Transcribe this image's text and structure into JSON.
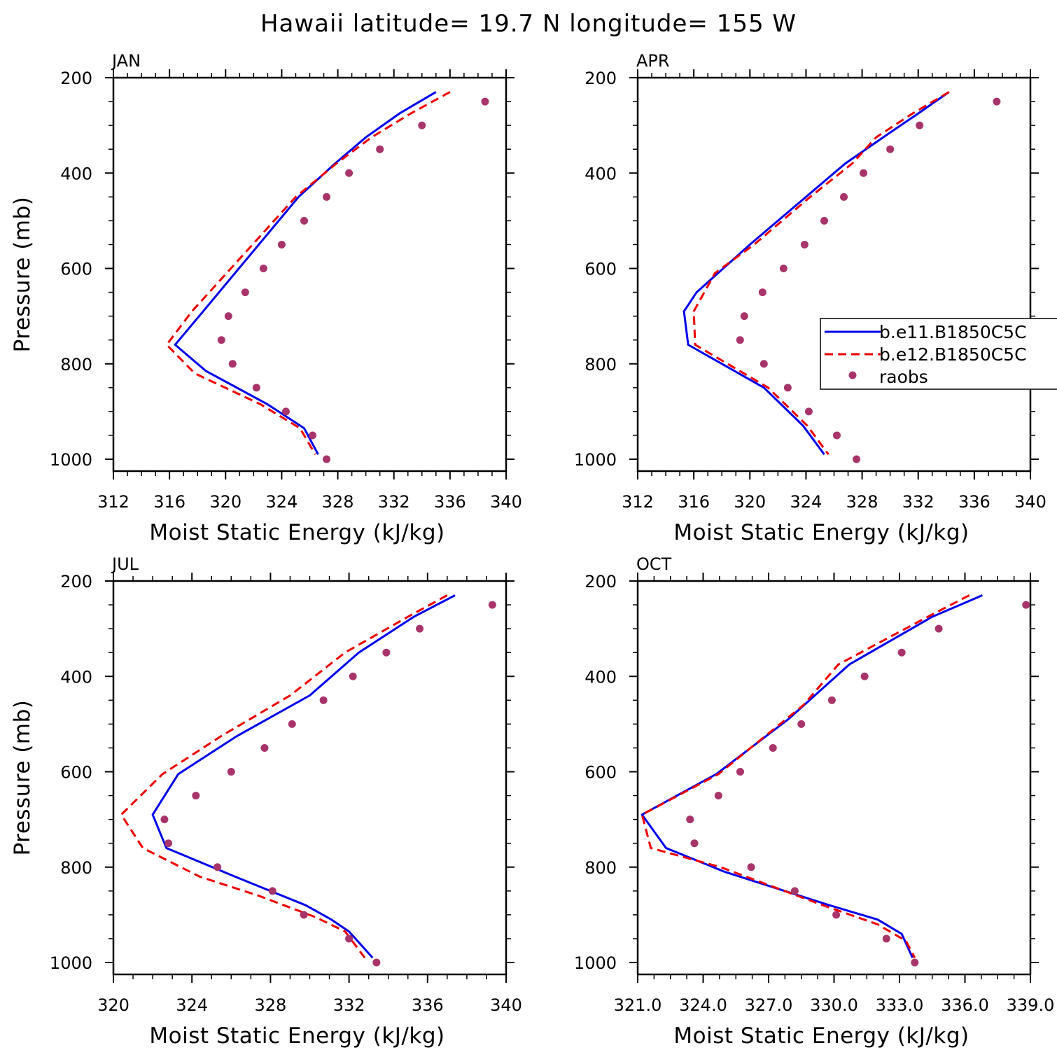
{
  "title": "Hawaii  latitude= 19.7 N longitude= 155 W",
  "colors": {
    "b.e11.B1850C5CN": "#0000ee",
    "b.e12.B1850C5CN": "#ee0000",
    "raobs": "#a8356a"
  },
  "legend": {
    "placement": "right of APR panel",
    "entries": [
      "b.e11.B1850C5C",
      "b.e12.B1850C5C",
      "raobs"
    ]
  },
  "chart_data": [
    {
      "type": "line",
      "panel": "JAN",
      "title": "JAN",
      "xlabel": "Moist Static Energy (kJ/kg)",
      "ylabel": "Pressure (mb)",
      "xlim": [
        312,
        340
      ],
      "ylim": [
        1000,
        200
      ],
      "xticks": [
        "312",
        "316",
        "320",
        "324",
        "328",
        "332",
        "336",
        "340"
      ],
      "yticks": [
        "200",
        "400",
        "600",
        "800",
        "1000"
      ],
      "series": [
        {
          "name": "b.e11.B1850C5C",
          "style": "solid",
          "x": [
            335.0,
            332.4,
            330.0,
            327.8,
            325.2,
            318.4,
            316.4,
            318.6,
            323.0,
            325.6,
            326.6
          ],
          "y": [
            230,
            275,
            325,
            380,
            450,
            690,
            760,
            815,
            885,
            935,
            990
          ]
        },
        {
          "name": "b.e12.B1850C5C",
          "style": "dashed",
          "x": [
            336.0,
            333.2,
            330.4,
            327.9,
            325.0,
            317.6,
            315.8,
            317.8,
            322.5,
            325.3,
            326.4
          ],
          "y": [
            230,
            275,
            325,
            380,
            450,
            690,
            760,
            820,
            885,
            935,
            990
          ]
        },
        {
          "name": "raobs",
          "style": "markers",
          "x": [
            338.5,
            334.0,
            331.0,
            328.8,
            327.2,
            325.6,
            324.0,
            322.7,
            321.4,
            320.2,
            319.7,
            320.5,
            322.2,
            324.3,
            326.2,
            327.2
          ],
          "y": [
            250,
            300,
            350,
            400,
            450,
            500,
            550,
            600,
            650,
            700,
            750,
            800,
            850,
            900,
            950,
            1000
          ]
        }
      ]
    },
    {
      "type": "line",
      "panel": "APR",
      "title": "APR",
      "xlabel": "Moist Static Energy (kJ/kg)",
      "ylabel": "",
      "xlim": [
        312,
        340
      ],
      "ylim": [
        1000,
        200
      ],
      "xticks": [
        "312",
        "316",
        "320",
        "324",
        "328",
        "332",
        "336",
        "340"
      ],
      "yticks": [
        "200",
        "400",
        "600",
        "800",
        "1000"
      ],
      "series": [
        {
          "name": "b.e11.B1850C5C",
          "style": "solid",
          "x": [
            334.2,
            332.0,
            329.5,
            326.8,
            324.0,
            320.0,
            316.2,
            315.3,
            315.6,
            321.0,
            323.8,
            325.3
          ],
          "y": [
            230,
            275,
            325,
            380,
            450,
            550,
            650,
            690,
            760,
            850,
            930,
            990
          ]
        },
        {
          "name": "b.e12.B1850C5C",
          "style": "dashed",
          "x": [
            334.2,
            331.6,
            329.0,
            327.3,
            324.3,
            320.3,
            317.5,
            316.0,
            316.1,
            321.3,
            324.1,
            325.6
          ],
          "y": [
            230,
            275,
            325,
            380,
            450,
            550,
            610,
            690,
            760,
            850,
            930,
            990
          ]
        },
        {
          "name": "raobs",
          "style": "markers",
          "x": [
            337.6,
            332.1,
            330.0,
            328.1,
            326.7,
            325.3,
            323.9,
            322.4,
            320.9,
            319.6,
            319.3,
            321.0,
            322.7,
            324.2,
            326.2,
            327.6
          ],
          "y": [
            250,
            300,
            350,
            400,
            450,
            500,
            550,
            600,
            650,
            700,
            750,
            800,
            850,
            900,
            950,
            1000
          ]
        }
      ]
    },
    {
      "type": "line",
      "panel": "JUL",
      "title": "JUL",
      "xlabel": "Moist Static Energy (kJ/kg)",
      "ylabel": "Pressure (mb)",
      "xlim": [
        320,
        340
      ],
      "ylim": [
        1000,
        200
      ],
      "xticks": [
        "320",
        "324",
        "328",
        "332",
        "336",
        "340"
      ],
      "yticks": [
        "200",
        "400",
        "600",
        "800",
        "1000"
      ],
      "series": [
        {
          "name": "b.e11.B1850C5C",
          "style": "solid",
          "x": [
            337.4,
            335.3,
            332.5,
            330.0,
            326.3,
            323.3,
            322.0,
            322.7,
            326.2,
            329.8,
            331.1,
            332.0,
            333.2
          ],
          "y": [
            230,
            275,
            350,
            440,
            525,
            605,
            690,
            760,
            820,
            880,
            910,
            935,
            990
          ]
        },
        {
          "name": "b.e12.B1850C5C",
          "style": "dashed",
          "x": [
            337.0,
            335.0,
            331.8,
            329.0,
            325.5,
            322.5,
            320.4,
            321.5,
            324.4,
            327.4,
            330.3,
            331.8,
            332.8
          ],
          "y": [
            230,
            275,
            350,
            440,
            525,
            605,
            690,
            760,
            820,
            860,
            905,
            935,
            990
          ]
        },
        {
          "name": "raobs",
          "style": "markers",
          "x": [
            339.3,
            335.6,
            333.9,
            332.2,
            330.7,
            329.1,
            327.7,
            326.0,
            324.2,
            322.6,
            322.8,
            325.3,
            328.1,
            329.7,
            332.0,
            333.4
          ],
          "y": [
            250,
            300,
            350,
            400,
            450,
            500,
            550,
            600,
            650,
            700,
            750,
            800,
            850,
            900,
            950,
            1000
          ]
        }
      ]
    },
    {
      "type": "line",
      "panel": "OCT",
      "title": "OCT",
      "xlabel": "Moist Static Energy (kJ/kg)",
      "ylabel": "",
      "xlim": [
        321,
        339
      ],
      "ylim": [
        1000,
        200
      ],
      "xticks": [
        "321.0",
        "324.0",
        "327.0",
        "330.0",
        "333.0",
        "336.0",
        "339.0"
      ],
      "yticks": [
        "200",
        "400",
        "600",
        "800",
        "1000"
      ],
      "series": [
        {
          "name": "b.e11.B1850C5C",
          "style": "solid",
          "x": [
            336.8,
            334.5,
            330.7,
            327.9,
            324.6,
            321.2,
            322.3,
            325.0,
            329.8,
            332.0,
            333.1,
            333.6
          ],
          "y": [
            230,
            275,
            375,
            490,
            605,
            690,
            760,
            810,
            880,
            910,
            940,
            990
          ]
        },
        {
          "name": "b.e12.B1850C5C",
          "style": "dashed",
          "x": [
            336.2,
            334.3,
            330.2,
            328.6,
            324.7,
            321.2,
            321.6,
            324.8,
            329.5,
            332.0,
            333.3,
            333.7
          ],
          "y": [
            230,
            275,
            375,
            460,
            605,
            690,
            760,
            800,
            880,
            920,
            955,
            990
          ]
        },
        {
          "name": "raobs",
          "style": "markers",
          "x": [
            338.8,
            334.8,
            333.1,
            331.4,
            329.9,
            328.5,
            327.2,
            325.7,
            324.7,
            323.4,
            323.6,
            326.2,
            328.2,
            330.1,
            332.4,
            333.7
          ],
          "y": [
            250,
            300,
            350,
            400,
            450,
            500,
            550,
            600,
            650,
            700,
            750,
            800,
            850,
            900,
            950,
            1000
          ]
        }
      ]
    }
  ]
}
